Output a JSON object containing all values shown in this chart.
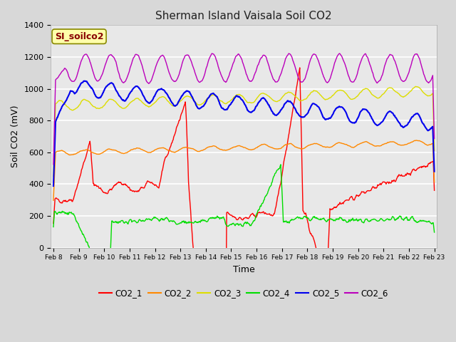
{
  "title": "Sherman Island Vaisala Soil CO2",
  "xlabel": "Time",
  "ylabel": "Soil CO2 (mV)",
  "ylim": [
    0,
    1400
  ],
  "bg_color": "#d8d8d8",
  "plot_bg": "#e8e8e8",
  "label_box_text": "SI_soilco2",
  "label_box_bg": "#ffffaa",
  "label_box_border": "#888800",
  "series_colors": {
    "CO2_1": "#ff0000",
    "CO2_2": "#ff8800",
    "CO2_3": "#dddd00",
    "CO2_4": "#00dd00",
    "CO2_5": "#0000ee",
    "CO2_6": "#bb00bb"
  },
  "tick_labels": [
    "Feb 8",
    "Feb 9",
    "Feb 10",
    "Feb 11",
    "Feb 12",
    "Feb 13",
    "Feb 14",
    "Feb 15",
    "Feb 16",
    "Feb 17",
    "Feb 18",
    "Feb 19",
    "Feb 20",
    "Feb 21",
    "Feb 22",
    "Feb 23"
  ],
  "n_points": 720,
  "seed": 42
}
